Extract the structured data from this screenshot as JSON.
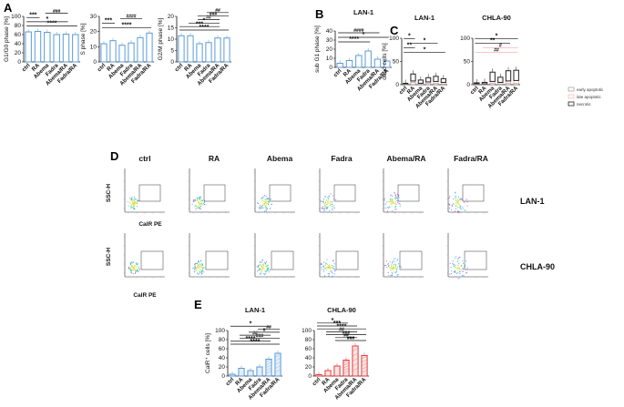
{
  "panels": {
    "A": "A",
    "B": "B",
    "C": "C",
    "D": "D",
    "E": "E"
  },
  "colors": {
    "blue": "#5b9bd5",
    "lightblue": "#bdd7ee",
    "red": "#e23b3b",
    "pink": "#f4a6a6",
    "black": "#222222",
    "grey": "#888888"
  },
  "chart_data": [
    {
      "id": "A1",
      "type": "bar",
      "title": "",
      "ylabel": "G1/G0 phase [%]",
      "ylim": [
        0,
        100
      ],
      "yticks": [
        "0",
        "20",
        "40",
        "60",
        "80",
        "100"
      ],
      "categories": [
        "ctrl",
        "RA",
        "Abema",
        "Fadra",
        "Abema/RA",
        "Fadra/RA"
      ],
      "values": [
        66,
        67,
        65,
        60,
        61,
        60
      ],
      "sig": [
        {
          "label": "****",
          "from": 0,
          "to": 5
        },
        {
          "label": "*",
          "from": 0,
          "to": 4
        },
        {
          "label": "***",
          "from": 0,
          "to": 1
        },
        {
          "label": "###",
          "from": 2,
          "to": 4
        }
      ]
    },
    {
      "id": "A2",
      "type": "bar",
      "title": "",
      "ylabel": "S phase [%]",
      "ylim": [
        0,
        30
      ],
      "yticks": [
        "0",
        "10",
        "20",
        "30"
      ],
      "categories": [
        "ctrl",
        "RA",
        "Abema",
        "Fadra",
        "Abema/RA",
        "Fadra/RA"
      ],
      "values": [
        12,
        14,
        11,
        12.5,
        16,
        19
      ],
      "sig": [
        {
          "label": "****",
          "from": 0,
          "to": 5
        },
        {
          "label": "***",
          "from": 0,
          "to": 1
        },
        {
          "label": "####",
          "from": 2,
          "to": 4
        }
      ]
    },
    {
      "id": "A3",
      "type": "bar",
      "title": "",
      "ylabel": "G2/M phase [%]",
      "ylim": [
        0,
        20
      ],
      "yticks": [
        "0",
        "5",
        "10",
        "15",
        "20"
      ],
      "categories": [
        "ctrl",
        "RA",
        "Abema",
        "Fadra",
        "Abema/RA",
        "Fadra/RA"
      ],
      "values": [
        11.5,
        11.5,
        8,
        8.5,
        10.5,
        10.5
      ],
      "sig": [
        {
          "label": "****",
          "from": 0,
          "to": 5
        },
        {
          "label": "***",
          "from": 0,
          "to": 4
        },
        {
          "label": "*",
          "from": 1,
          "to": 4
        },
        {
          "label": "##",
          "from": 2,
          "to": 4
        },
        {
          "label": "###",
          "from": 2,
          "to": 5
        },
        {
          "label": "##",
          "from": 3,
          "to": 5
        }
      ]
    },
    {
      "id": "B",
      "type": "bar",
      "title": "LAN-1",
      "ylabel": "sub G1 phase [%]",
      "ylim": [
        0,
        40
      ],
      "yticks": [
        "0",
        "10",
        "20",
        "30",
        "40"
      ],
      "categories": [
        "ctrl",
        "RA",
        "Abema",
        "Fadra",
        "Abema/RA",
        "Fadra/RA"
      ],
      "values": [
        4.5,
        7.5,
        13,
        18,
        9,
        7
      ],
      "sig": [
        {
          "label": "****",
          "from": 0,
          "to": 3
        },
        {
          "label": "*",
          "from": 0,
          "to": 5
        },
        {
          "label": "####",
          "from": 0,
          "to": 4
        }
      ]
    },
    {
      "id": "C1",
      "type": "bar",
      "title": "LAN-1",
      "ylabel": "dead cells [%]",
      "ylim": [
        0,
        100
      ],
      "yticks": [
        "0",
        "50",
        "100"
      ],
      "categories": [
        "ctrl",
        "RA",
        "Abema",
        "Fadra",
        "Abema/RA",
        "Fadra/RA"
      ],
      "series": [
        {
          "name": "early apoptotic",
          "values": [
            1,
            5,
            1,
            3,
            3,
            2
          ]
        },
        {
          "name": "late apoptotic",
          "values": [
            1,
            3,
            2,
            3,
            4,
            3
          ]
        },
        {
          "name": "necrotic",
          "values": [
            1,
            15,
            7,
            9,
            11,
            8
          ]
        }
      ],
      "sig": [
        {
          "label": "*",
          "from": 0,
          "to": 5
        },
        {
          "label": "**",
          "from": 0,
          "to": 1
        },
        {
          "label": "*",
          "from": 1,
          "to": 4
        },
        {
          "label": "*",
          "from": 0,
          "to": 1
        }
      ]
    },
    {
      "id": "C2",
      "type": "bar",
      "title": "CHLA-90",
      "ylabel": "",
      "ylim": [
        0,
        100
      ],
      "yticks": [
        "0",
        "50",
        "100"
      ],
      "categories": [
        "ctrl",
        "RA",
        "Abema",
        "Fadra",
        "Abema/RA",
        "Fadra/RA"
      ],
      "series": [
        {
          "name": "early apoptotic",
          "values": [
            1,
            1,
            3,
            2,
            3,
            3
          ]
        },
        {
          "name": "late apoptotic",
          "values": [
            1,
            1,
            4,
            3,
            5,
            6
          ]
        },
        {
          "name": "necrotic",
          "values": [
            2,
            3,
            20,
            11,
            22,
            22
          ]
        }
      ],
      "sig": [
        {
          "label": "##",
          "from": 0,
          "to": 5
        },
        {
          "label": "#",
          "from": 1,
          "to": 5
        },
        {
          "label": "**",
          "from": 0,
          "to": 4
        },
        {
          "label": "*",
          "from": 0,
          "to": 5
        }
      ]
    },
    {
      "id": "E1",
      "type": "bar",
      "title": "LAN-1",
      "ylabel": "CalR⁺ cells [%]",
      "ylim": [
        0,
        100
      ],
      "yticks": [
        "0",
        "20",
        "40",
        "60",
        "80",
        "100"
      ],
      "categories": [
        "ctrl",
        "RA",
        "Abema",
        "Fadra",
        "Abema/RA",
        "Fadra/RA"
      ],
      "values": [
        4,
        17,
        12,
        20,
        37,
        50
      ],
      "sig": [
        {
          "label": "****",
          "from": 0,
          "to": 5
        },
        {
          "label": "****",
          "from": 0,
          "to": 4
        },
        {
          "label": "###",
          "from": 1,
          "to": 5
        },
        {
          "label": "##",
          "from": 1,
          "to": 4
        },
        {
          "label": "#",
          "from": 2,
          "to": 5
        },
        {
          "label": "##",
          "from": 3,
          "to": 5
        },
        {
          "label": "*",
          "from": 0,
          "to": 4
        }
      ]
    },
    {
      "id": "E2",
      "type": "bar",
      "title": "CHLA-90",
      "ylabel": "",
      "ylim": [
        0,
        100
      ],
      "yticks": [
        "0",
        "20",
        "40",
        "60",
        "80",
        "100"
      ],
      "categories": [
        "ctrl",
        "RA",
        "Abema",
        "Fadra",
        "Abema/RA",
        "Fadra/RA"
      ],
      "values": [
        3,
        12,
        22,
        35,
        66,
        45
      ],
      "sig": [
        {
          "label": "###",
          "from": 2,
          "to": 5
        },
        {
          "label": "##",
          "from": 2,
          "to": 4
        },
        {
          "label": "###",
          "from": 1,
          "to": 5
        },
        {
          "label": "##",
          "from": 1,
          "to": 4
        },
        {
          "label": "****",
          "from": 0,
          "to": 5
        },
        {
          "label": "***",
          "from": 0,
          "to": 4
        },
        {
          "label": "*",
          "from": 0,
          "to": 3
        }
      ]
    }
  ],
  "legend_c": [
    "early apoptotic",
    "late apoptotic",
    "necrotic"
  ],
  "facs": {
    "columns": [
      "ctrl",
      "RA",
      "Abema",
      "Fadra",
      "Abema/RA",
      "Fadra/RA"
    ],
    "rows": [
      "LAN-1",
      "CHLA-90"
    ],
    "xlabel": "CalR PE",
    "ylabel": "SSC-H"
  }
}
